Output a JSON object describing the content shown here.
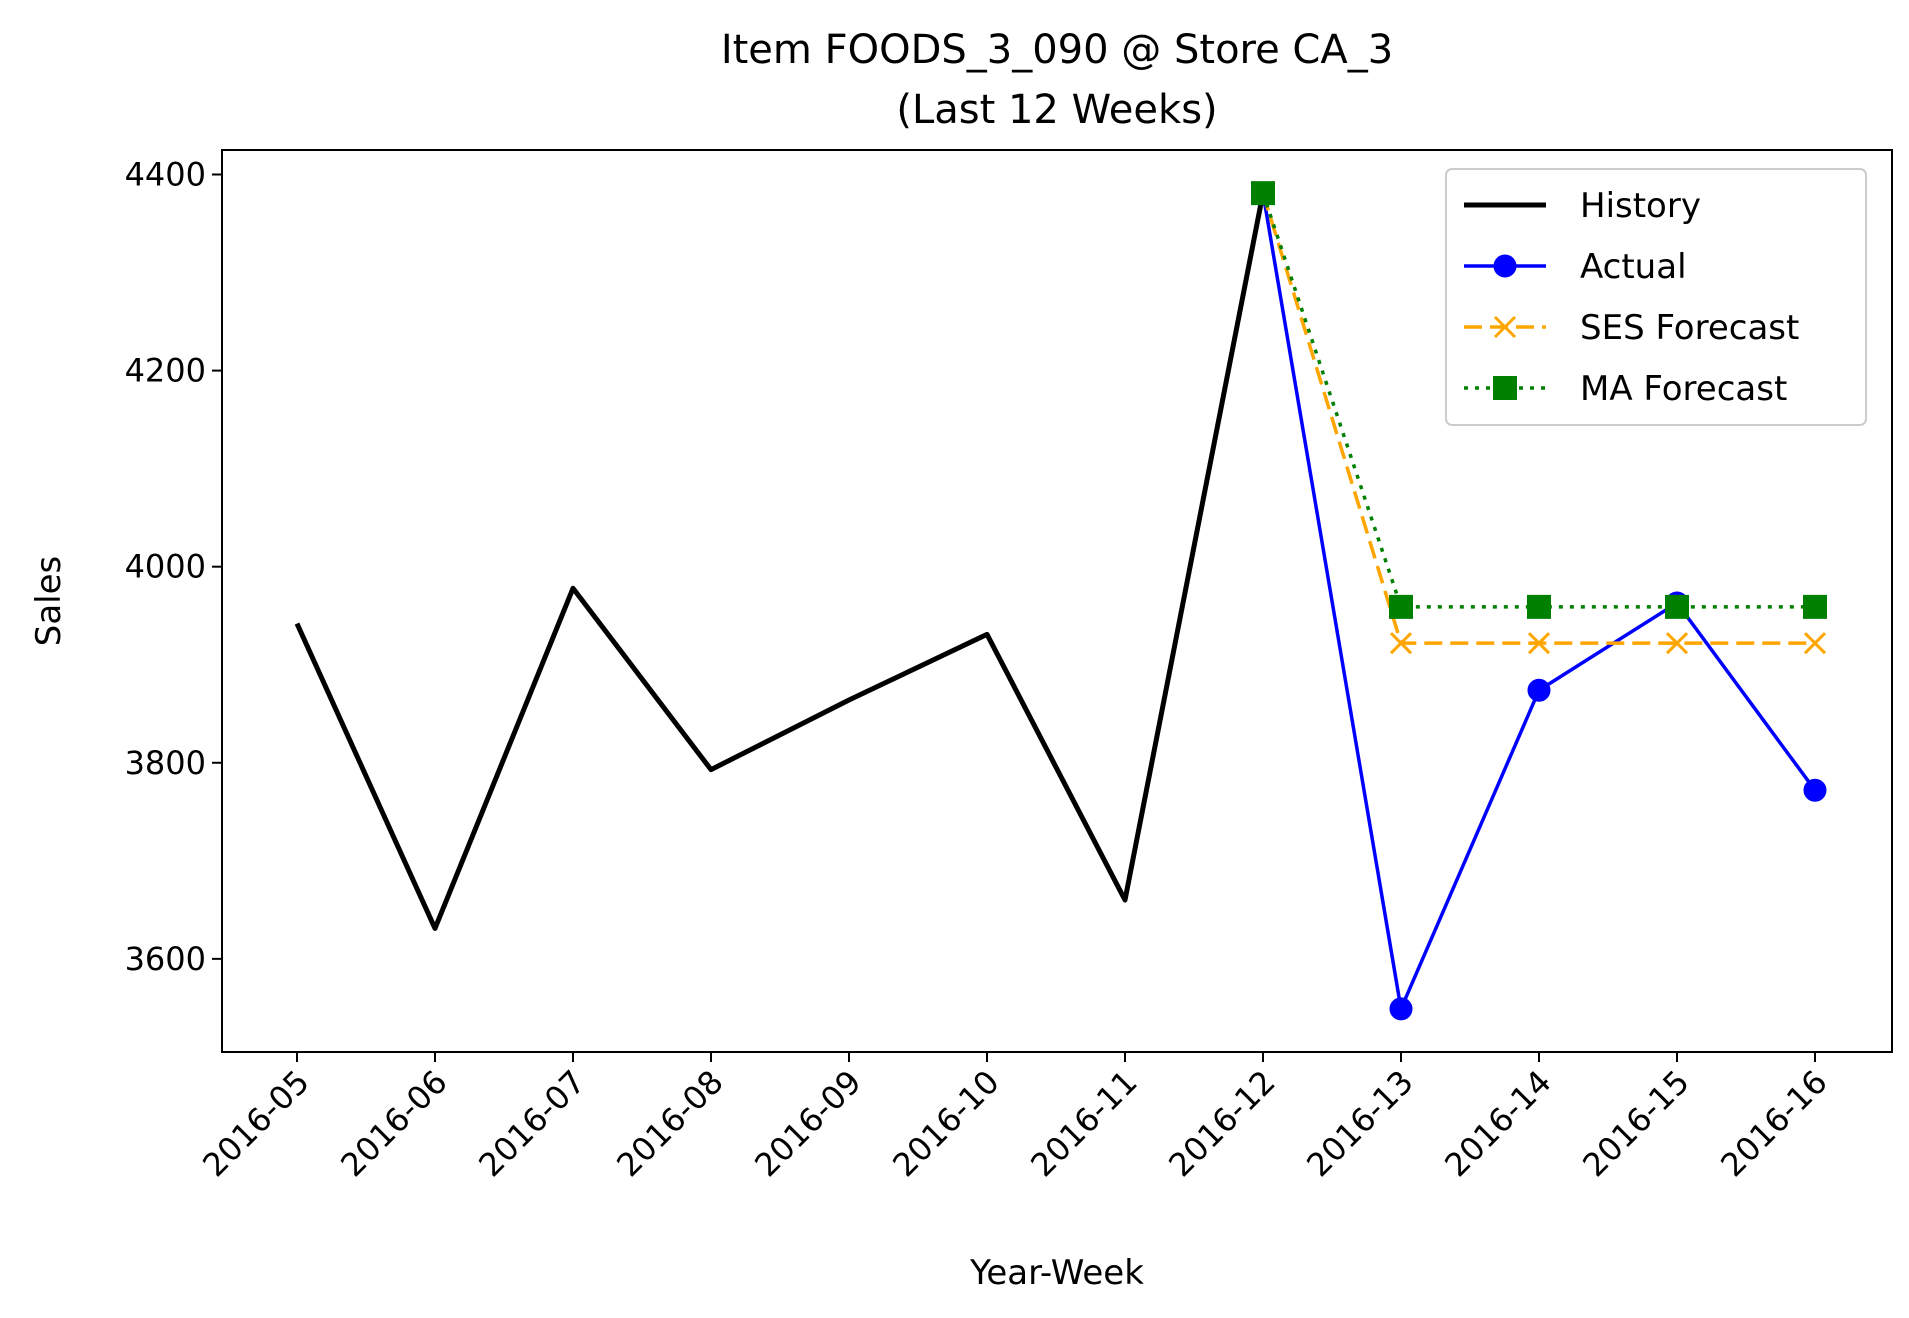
{
  "chart_data": {
    "type": "line",
    "title": "Item FOODS_3_090 @ Store CA_3",
    "subtitle": "(Last 12 Weeks)",
    "xlabel": "Year-Week",
    "ylabel": "Sales",
    "categories": [
      "2016-05",
      "2016-06",
      "2016-07",
      "2016-08",
      "2016-09",
      "2016-10",
      "2016-11",
      "2016-12",
      "2016-13",
      "2016-14",
      "2016-15",
      "2016-16"
    ],
    "ylim": [
      3505,
      4425
    ],
    "yticks": [
      3600,
      3800,
      4000,
      4200,
      4400
    ],
    "grid": false,
    "legend_position": "top-right",
    "series": [
      {
        "name": "History",
        "color": "#000000",
        "style": "solid",
        "marker": "none",
        "values": [
          3942,
          3631,
          3978,
          3793,
          3864,
          3931,
          3660,
          4381,
          null,
          null,
          null,
          null
        ]
      },
      {
        "name": "Actual",
        "color": "#0000ff",
        "style": "solid",
        "marker": "circle",
        "values": [
          null,
          null,
          null,
          null,
          null,
          null,
          null,
          4381,
          3549,
          3874,
          3963,
          3772
        ]
      },
      {
        "name": "SES Forecast",
        "color": "#ffa500",
        "style": "dashed",
        "marker": "x",
        "values": [
          null,
          null,
          null,
          null,
          null,
          null,
          null,
          4381,
          3922,
          3922,
          3922,
          3922
        ]
      },
      {
        "name": "MA Forecast",
        "color": "#008000",
        "style": "dotted",
        "marker": "square",
        "values": [
          null,
          null,
          null,
          null,
          null,
          null,
          null,
          4381,
          3959,
          3959,
          3959,
          3959
        ]
      }
    ]
  }
}
